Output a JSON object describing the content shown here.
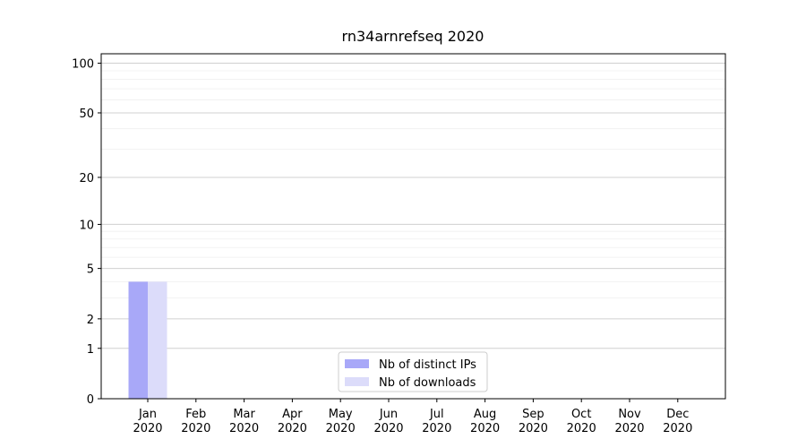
{
  "chart_data": {
    "type": "bar",
    "title": "rn34arnrefseq 2020",
    "categories": [
      "Jan\n2020",
      "Feb\n2020",
      "Mar\n2020",
      "Apr\n2020",
      "May\n2020",
      "Jun\n2020",
      "Jul\n2020",
      "Aug\n2020",
      "Sep\n2020",
      "Oct\n2020",
      "Nov\n2020",
      "Dec\n2020"
    ],
    "series": [
      {
        "name": "Nb of distinct IPs",
        "color": "#a8a8f8",
        "values": [
          4,
          0,
          0,
          0,
          0,
          0,
          0,
          0,
          0,
          0,
          0,
          0
        ]
      },
      {
        "name": "Nb of downloads",
        "color": "#dcdcfa",
        "values": [
          4,
          0,
          0,
          0,
          0,
          0,
          0,
          0,
          0,
          0,
          0,
          0
        ]
      }
    ],
    "yscale": "log1p",
    "ylim": [
      0,
      114
    ],
    "yticks": [
      0,
      1,
      2,
      5,
      10,
      20,
      50,
      100
    ],
    "minor_yticks": [
      3,
      4,
      6,
      7,
      8,
      9,
      30,
      40,
      60,
      70,
      80,
      90
    ],
    "grid": true,
    "legend": "lower center"
  }
}
